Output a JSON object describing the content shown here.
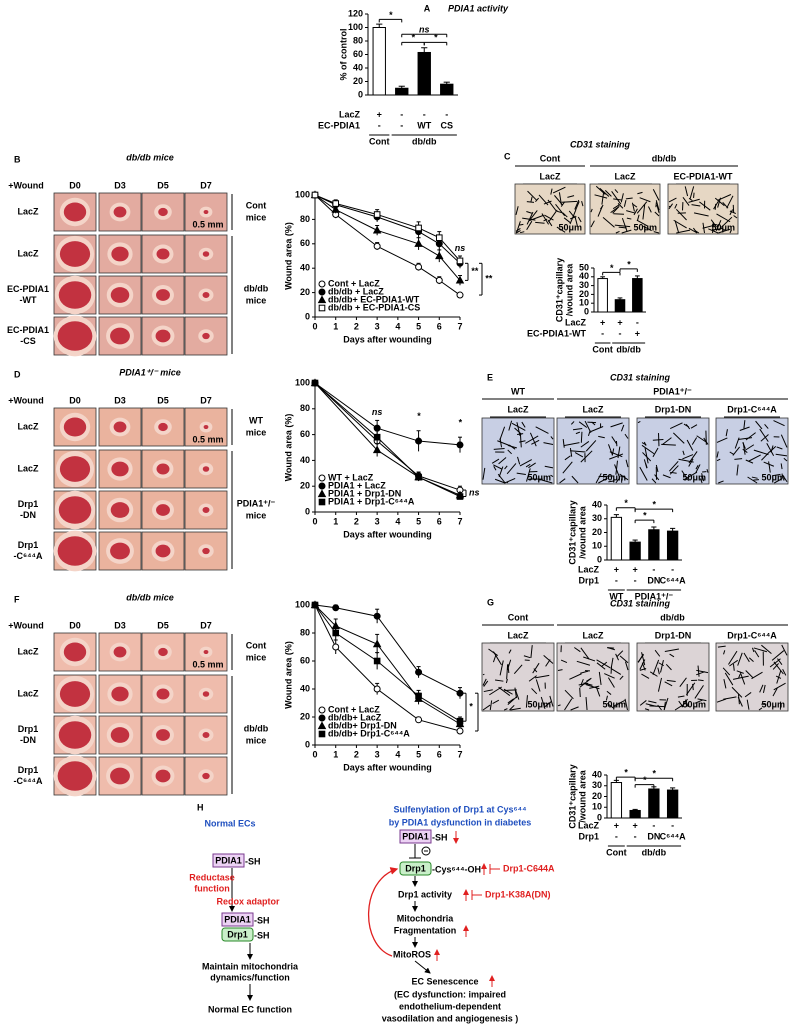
{
  "figure": {
    "panel_labels": [
      "A",
      "B",
      "C",
      "D",
      "E",
      "F",
      "G",
      "H"
    ]
  },
  "chart_data": [
    {
      "type": "bar",
      "title": "PDIA1 activity",
      "ylabel": [
        "% of control"
      ],
      "values": [
        100,
        10,
        63,
        16
      ],
      "errors": [
        5,
        3,
        7,
        3
      ],
      "colors": [
        "#ffffff",
        "#000000",
        "#000000",
        "#000000"
      ],
      "ylim": [
        0,
        120
      ],
      "yticks": [
        0,
        20,
        40,
        60,
        80,
        100,
        120
      ],
      "condition_rows": [
        {
          "name": "LacZ",
          "values": [
            "+",
            "-",
            "-",
            "-"
          ]
        },
        {
          "name": "EC-PDIA1",
          "values": [
            "-",
            "-",
            "WT",
            "CS"
          ]
        }
      ],
      "groups": [
        "Cont",
        "db/db"
      ],
      "annotations": [
        "*",
        "ns",
        "*",
        "*"
      ]
    },
    {
      "type": "line",
      "ylabel": "Wound area (%)",
      "xlabel": "Days after wounding",
      "x": [
        0,
        1,
        3,
        5,
        6,
        7
      ],
      "xlim": [
        0,
        7
      ],
      "xticks": [
        0,
        1,
        2,
        3,
        4,
        5,
        6,
        7
      ],
      "ylim": [
        0,
        100
      ],
      "yticks": [
        0,
        20,
        40,
        60,
        80,
        100
      ],
      "legend": "lower left",
      "series": [
        {
          "name": "Cont + LacZ",
          "marker": "open-circle",
          "color": "#000000",
          "values": [
            100,
            84,
            58,
            41,
            30,
            18
          ],
          "errors": [
            0,
            3,
            3,
            3,
            3,
            2
          ]
        },
        {
          "name": "db/db + LacZ",
          "marker": "filled-circle",
          "color": "#000000",
          "values": [
            100,
            92,
            82,
            70,
            60,
            44
          ],
          "errors": [
            0,
            3,
            4,
            5,
            5,
            4
          ]
        },
        {
          "name": "db/db+ EC-PDIA1-WT",
          "marker": "filled-triangle",
          "color": "#000000",
          "values": [
            100,
            88,
            71,
            60,
            50,
            30
          ],
          "errors": [
            0,
            3,
            4,
            5,
            5,
            4
          ]
        },
        {
          "name": "db/db + EC-PDIA1-CS",
          "marker": "open-square",
          "color": "#000000",
          "values": [
            100,
            93,
            84,
            73,
            65,
            46
          ],
          "errors": [
            0,
            3,
            4,
            5,
            5,
            4
          ]
        }
      ],
      "annotations": [
        "ns",
        "**",
        "**"
      ]
    },
    {
      "type": "bar",
      "ylabel": [
        "CD31⁺capillary",
        "/wound area"
      ],
      "values": [
        38,
        14,
        38
      ],
      "errors": [
        2,
        2,
        3
      ],
      "colors": [
        "#ffffff",
        "#000000",
        "#000000"
      ],
      "ylim": [
        0,
        50
      ],
      "yticks": [
        0,
        10,
        20,
        30,
        40,
        50
      ],
      "condition_rows": [
        {
          "name": "LacZ",
          "values": [
            "+",
            "+",
            "-"
          ]
        },
        {
          "name": "EC-PDIA1-WT",
          "values": [
            "-",
            "-",
            "+"
          ]
        }
      ],
      "groups": [
        "Cont",
        "db/db"
      ],
      "annotations": [
        "*",
        "*"
      ]
    },
    {
      "type": "line",
      "ylabel": "Wound area (%)",
      "xlabel": "Days after wounding",
      "x": [
        0,
        3,
        5,
        7
      ],
      "xlim": [
        0,
        7
      ],
      "xticks": [
        0,
        1,
        2,
        3,
        4,
        5,
        6,
        7
      ],
      "ylim": [
        0,
        100
      ],
      "yticks": [
        0,
        20,
        40,
        60,
        80,
        100
      ],
      "legend": "lower left",
      "series": [
        {
          "name": "WT + LacZ",
          "marker": "open-circle",
          "color": "#000000",
          "values": [
            100,
            55,
            28,
            17
          ],
          "errors": [
            0,
            3,
            3,
            3
          ]
        },
        {
          "name": "PDIA1 + LacZ",
          "marker": "filled-circle",
          "color": "#000000",
          "values": [
            100,
            65,
            55,
            52
          ],
          "errors": [
            0,
            6,
            8,
            6
          ]
        },
        {
          "name": "PDIA1 + Drp1-DN",
          "marker": "filled-triangle",
          "color": "#000000",
          "values": [
            100,
            48,
            27,
            13
          ],
          "errors": [
            0,
            5,
            3,
            2
          ]
        },
        {
          "name": "PDIA1 + Drp1-C⁶⁴⁴A",
          "marker": "filled-square",
          "color": "#000000",
          "values": [
            100,
            58,
            27,
            12
          ],
          "errors": [
            0,
            5,
            3,
            2
          ]
        }
      ],
      "annotations": [
        "ns",
        "*",
        "*",
        "ns"
      ]
    },
    {
      "type": "bar",
      "ylabel": [
        "CD31⁺capillary",
        "/wound area"
      ],
      "values": [
        31,
        13,
        22,
        21
      ],
      "errors": [
        2,
        1.5,
        2,
        2
      ],
      "colors": [
        "#ffffff",
        "#000000",
        "#000000",
        "#000000"
      ],
      "ylim": [
        0,
        40
      ],
      "yticks": [
        0,
        10,
        20,
        30,
        40
      ],
      "condition_rows": [
        {
          "name": "LacZ",
          "values": [
            "+",
            "+",
            "-",
            "-"
          ]
        },
        {
          "name": "Drp1",
          "values": [
            "-",
            "-",
            "DN",
            "C⁶⁴⁴A"
          ]
        }
      ],
      "groups": [
        "WT",
        "PDIA1⁺/⁻"
      ],
      "annotations": [
        "*",
        "*",
        "*"
      ]
    },
    {
      "type": "line",
      "ylabel": "Wound area (%)",
      "xlabel": "Days after wounding",
      "x": [
        0,
        1,
        3,
        5,
        7
      ],
      "xlim": [
        0,
        7
      ],
      "xticks": [
        0,
        1,
        2,
        3,
        4,
        5,
        6,
        7
      ],
      "ylim": [
        0,
        100
      ],
      "yticks": [
        0,
        20,
        40,
        60,
        80,
        100
      ],
      "legend": "lower left",
      "series": [
        {
          "name": "Cont + LacZ",
          "marker": "open-circle",
          "color": "#000000",
          "values": [
            100,
            70,
            40,
            18,
            10
          ],
          "errors": [
            0,
            5,
            4,
            2,
            2
          ]
        },
        {
          "name": "db/db+ LacZ",
          "marker": "filled-circle",
          "color": "#000000",
          "values": [
            100,
            98,
            92,
            52,
            37
          ],
          "errors": [
            0,
            2,
            5,
            4,
            4
          ]
        },
        {
          "name": "db/db+ Drp1-DN",
          "marker": "filled-triangle",
          "color": "#000000",
          "values": [
            100,
            85,
            72,
            33,
            15
          ],
          "errors": [
            0,
            5,
            7,
            4,
            3
          ]
        },
        {
          "name": "db/db+ Drp1-C⁶⁴⁴A",
          "marker": "filled-square",
          "color": "#000000",
          "values": [
            100,
            80,
            60,
            35,
            17
          ],
          "errors": [
            0,
            5,
            6,
            4,
            3
          ]
        }
      ],
      "annotations": [
        "*",
        "*"
      ]
    },
    {
      "type": "bar",
      "ylabel": [
        "CD31⁺capillary",
        "/wound area"
      ],
      "values": [
        33,
        7,
        27,
        26
      ],
      "errors": [
        2,
        1,
        2,
        2
      ],
      "colors": [
        "#ffffff",
        "#000000",
        "#000000",
        "#000000"
      ],
      "ylim": [
        0,
        40
      ],
      "yticks": [
        0,
        10,
        20,
        30,
        40
      ],
      "condition_rows": [
        {
          "name": "LacZ",
          "values": [
            "+",
            "+",
            "-",
            "-"
          ]
        },
        {
          "name": "Drp1",
          "values": [
            "-",
            "-",
            "DN",
            "C⁶⁴⁴A"
          ]
        }
      ],
      "groups": [
        "Cont",
        "db/db"
      ],
      "annotations": [
        "*",
        "*",
        "*"
      ]
    }
  ],
  "photo_panels": [
    {
      "title": "db/db mice",
      "wound_label": "+Wound",
      "columns": [
        "D0",
        "D3",
        "D5",
        "D7"
      ],
      "rows": [
        [
          "LacZ"
        ],
        [
          "LacZ"
        ],
        [
          "EC-PDIA1",
          "-WT"
        ],
        [
          "EC-PDIA1",
          "-CS"
        ]
      ],
      "groups": [
        [
          "Cont",
          "mice"
        ],
        [
          "db/db",
          "mice"
        ]
      ],
      "scale": "0.5 mm"
    },
    {
      "title": "PDIA1⁺/⁻ mice",
      "wound_label": "+Wound",
      "columns": [
        "D0",
        "D3",
        "D5",
        "D7"
      ],
      "rows": [
        [
          "LacZ"
        ],
        [
          "LacZ"
        ],
        [
          "Drp1",
          "-DN"
        ],
        [
          "Drp1",
          "-C⁶⁴⁴A"
        ]
      ],
      "groups": [
        [
          "WT",
          "mice"
        ],
        [
          "PDIA1⁺/⁻",
          "mice"
        ]
      ],
      "scale": "0.5 mm"
    },
    {
      "title": "db/db mice",
      "wound_label": "+Wound",
      "columns": [
        "D0",
        "D3",
        "D5",
        "D7"
      ],
      "rows": [
        [
          "LacZ"
        ],
        [
          "LacZ"
        ],
        [
          "Drp1",
          "-DN"
        ],
        [
          "Drp1",
          "-C⁶⁴⁴A"
        ]
      ],
      "groups": [
        [
          "Cont",
          "mice"
        ],
        [
          "db/db",
          "mice"
        ]
      ],
      "scale": "0.5 mm"
    }
  ],
  "staining_panels": [
    {
      "title": "CD31 staining",
      "groups": [
        "Cont",
        "db/db"
      ],
      "columns": [
        "LacZ",
        "LacZ",
        "EC-PDIA1-WT"
      ],
      "scale": "50μm"
    },
    {
      "title": "CD31 staining",
      "groups": [
        "WT",
        "PDIA1⁺/⁻"
      ],
      "columns": [
        "LacZ",
        "LacZ",
        "Drp1-DN",
        "Drp1-C⁶⁴⁴A"
      ],
      "scale": "50μm"
    },
    {
      "title": "CD31 staining",
      "groups": [
        "Cont",
        "db/db"
      ],
      "columns": [
        "LacZ",
        "LacZ",
        "Drp1-DN",
        "Drp1-C⁶⁴⁴A"
      ],
      "scale": "50μm"
    }
  ],
  "diagram": {
    "items": [
      "Normal ECs",
      "PDIA1",
      "-SH",
      "Reductase",
      "function",
      "Redox adaptor",
      "PDIA1",
      "-SH",
      "Drp1",
      "-SH",
      "Maintain mitochondria",
      "dynamics/function",
      "Normal EC function",
      "Sulfenylation of Drp1 at Cys⁶⁴⁴",
      "by PDIA1 dysfunction in diabetes",
      "PDIA1",
      "-SH",
      "Drp1",
      "-Cys⁶⁴⁴-OH",
      "Drp1-C644A",
      "Drp1 activity",
      "Drp1-K38A(DN)",
      "Mitochondria",
      "Fragmentation",
      "MitoROS",
      "EC Senescence",
      "(EC dysfunction: impaired",
      "endothelium-dependent",
      "vasodilation and  angiogenesis )"
    ]
  }
}
